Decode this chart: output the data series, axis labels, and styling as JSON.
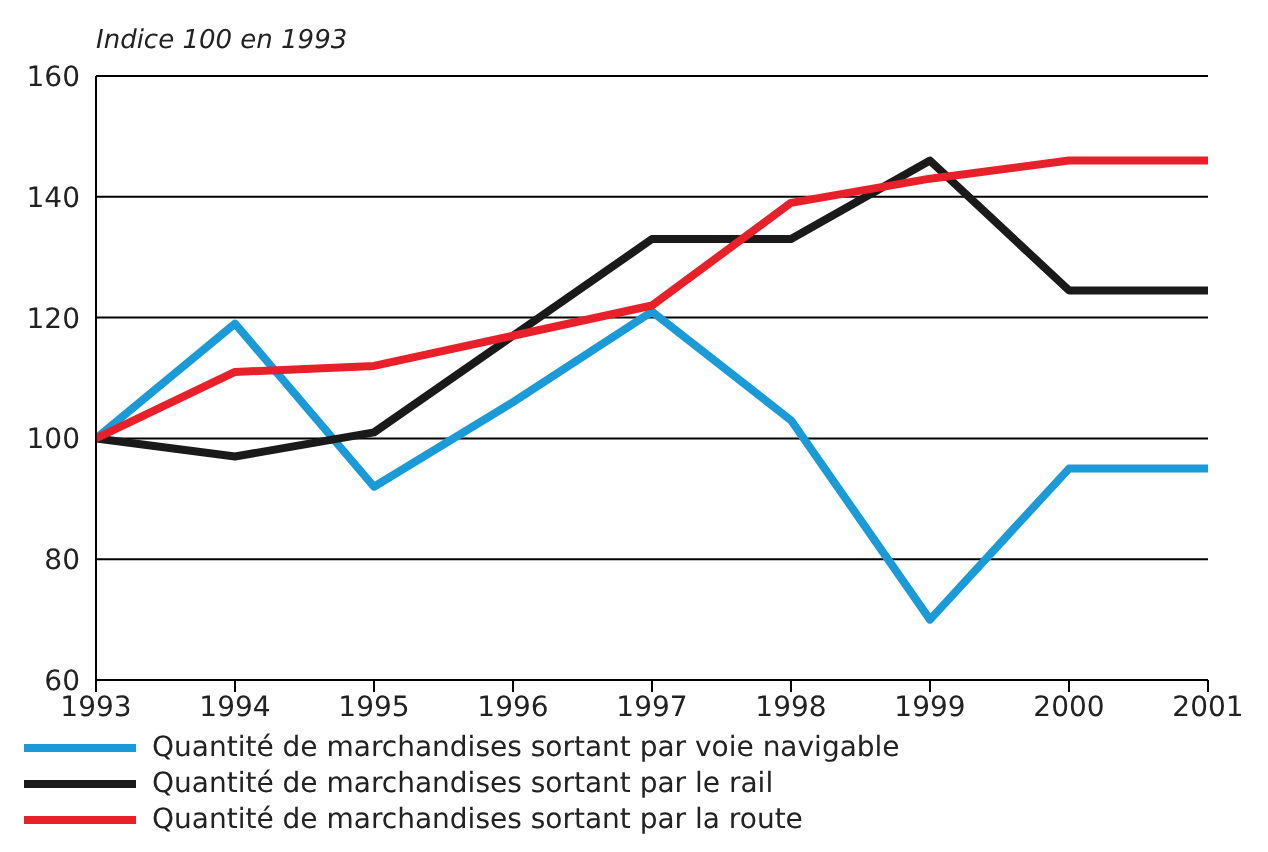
{
  "chart_data": {
    "type": "line",
    "ylabel": "Indice 100 en 1993",
    "x": [
      1993,
      1994,
      1995,
      1996,
      1997,
      1998,
      1999,
      2000,
      2001
    ],
    "xlim": [
      1993,
      2001
    ],
    "xticks": [
      1993,
      1994,
      1995,
      1996,
      1997,
      1998,
      1999,
      2000,
      2001
    ],
    "ylim": [
      60,
      160
    ],
    "yticks": [
      60,
      80,
      100,
      120,
      140,
      160
    ],
    "grid": "y",
    "legend": "bottom",
    "marker": "none",
    "line_style": "solid",
    "series": [
      {
        "name": "Quantité de marchandises sortant par voie navigable",
        "color": "#1a9ad6",
        "values": [
          100,
          119,
          92,
          106,
          121,
          103,
          70,
          95,
          95
        ]
      },
      {
        "name": "Quantité de marchandises sortant par le rail",
        "color": "#1a1a1a",
        "values": [
          100,
          97,
          101,
          117,
          133,
          133,
          146,
          124.5,
          124.5
        ]
      },
      {
        "name": "Quantité de marchandises sortant par la route",
        "color": "#e8202a",
        "values": [
          100,
          111,
          112,
          117,
          122,
          139,
          143,
          146,
          146
        ]
      }
    ]
  }
}
